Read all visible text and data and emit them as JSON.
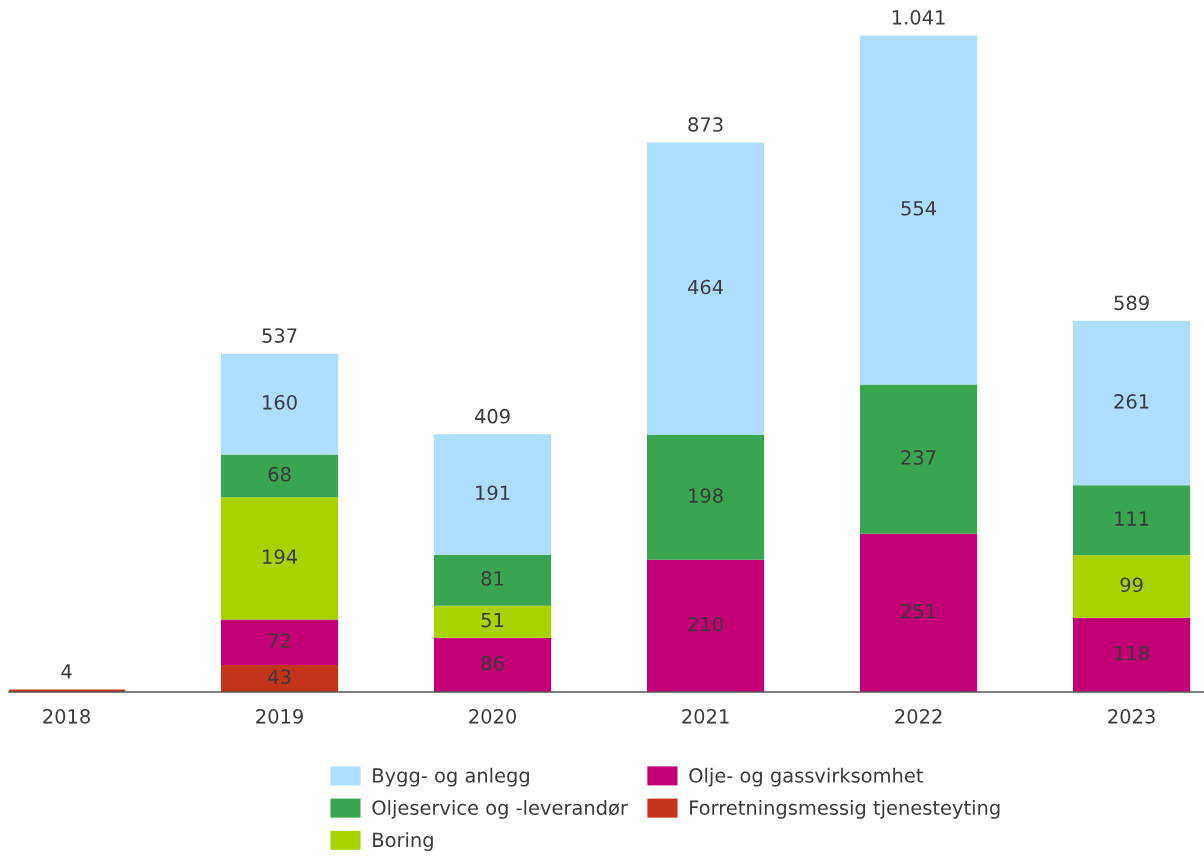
{
  "chart_data": {
    "type": "bar",
    "stacked": true,
    "categories": [
      "2018",
      "2019",
      "2020",
      "2021",
      "2022",
      "2023"
    ],
    "series": [
      {
        "name": "Forretningsmessig tjenesteyting",
        "color": "#c4341a",
        "values": [
          4,
          43,
          null,
          null,
          null,
          null
        ],
        "value_labels": [
          null,
          "43",
          null,
          null,
          null,
          null
        ]
      },
      {
        "name": "Olje- og gassvirksomhet",
        "color": "#c40076",
        "values": [
          null,
          72,
          86,
          210,
          251,
          118
        ],
        "value_labels": [
          null,
          "72",
          "86",
          "210",
          "251",
          "118"
        ]
      },
      {
        "name": "Boring",
        "color": "#a8d300",
        "values": [
          null,
          194,
          51,
          null,
          null,
          99
        ],
        "value_labels": [
          null,
          "194",
          "51",
          null,
          null,
          "99"
        ]
      },
      {
        "name": "Oljeservice og -leverandør",
        "color": "#3aa550",
        "values": [
          null,
          68,
          81,
          198,
          237,
          111
        ],
        "value_labels": [
          null,
          "68",
          "81",
          "198",
          "237",
          "111"
        ]
      },
      {
        "name": "Bygg- og anlegg",
        "color": "#addeff",
        "values": [
          null,
          160,
          191,
          464,
          554,
          261
        ],
        "value_labels": [
          null,
          "160",
          "191",
          "464",
          "554",
          "261"
        ]
      }
    ],
    "totals": [
      "4",
      "537",
      "409",
      "873",
      "1.041",
      "589"
    ],
    "legend": "bottom",
    "tick_labels": "x"
  }
}
